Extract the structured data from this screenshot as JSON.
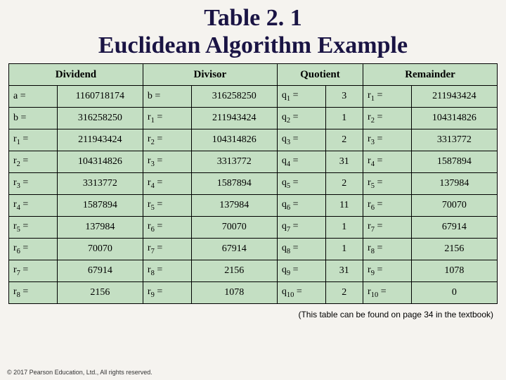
{
  "title_line1": "Table 2. 1",
  "title_line2": "Euclidean Algorithm Example",
  "caption": "(This table can be found on page 34 in the textbook)",
  "copyright": "© 2017 Pearson Education, Ltd., All rights reserved.",
  "table": {
    "type": "table",
    "background_color": "#c4dfc3",
    "border_color": "#000000",
    "font_family": "Times New Roman",
    "header_fontsize": 15,
    "cell_fontsize": 14,
    "columns": [
      "Dividend",
      "Divisor",
      "Quotient",
      "Remainder"
    ],
    "rows": [
      {
        "dividend_label": "a =",
        "dividend_value": "1160718174",
        "divisor_label": "b =",
        "divisor_value": "316258250",
        "quotient_label_base": "q",
        "quotient_label_sub": "1",
        "quotient_value": "3",
        "remainder_label_base": "r",
        "remainder_label_sub": "1",
        "remainder_value": "211943424"
      },
      {
        "dividend_label": "b =",
        "dividend_value": "316258250",
        "divisor_label_base": "r",
        "divisor_label_sub": "1",
        "divisor_value": "211943424",
        "quotient_label_base": "q",
        "quotient_label_sub": "2",
        "quotient_value": "1",
        "remainder_label_base": "r",
        "remainder_label_sub": "2",
        "remainder_value": "104314826"
      },
      {
        "dividend_label_base": "r",
        "dividend_label_sub": "1",
        "dividend_value": "211943424",
        "divisor_label_base": "r",
        "divisor_label_sub": "2",
        "divisor_value": "104314826",
        "quotient_label_base": "q",
        "quotient_label_sub": "3",
        "quotient_value": "2",
        "remainder_label_base": "r",
        "remainder_label_sub": "3",
        "remainder_value": "3313772"
      },
      {
        "dividend_label_base": "r",
        "dividend_label_sub": "2",
        "dividend_value": "104314826",
        "divisor_label_base": "r",
        "divisor_label_sub": "3",
        "divisor_value": "3313772",
        "quotient_label_base": "q",
        "quotient_label_sub": "4",
        "quotient_value": "31",
        "remainder_label_base": "r",
        "remainder_label_sub": "4",
        "remainder_value": "1587894"
      },
      {
        "dividend_label_base": "r",
        "dividend_label_sub": "3",
        "dividend_value": "3313772",
        "divisor_label_base": "r",
        "divisor_label_sub": "4",
        "divisor_value": "1587894",
        "quotient_label_base": "q",
        "quotient_label_sub": "5",
        "quotient_value": "2",
        "remainder_label_base": "r",
        "remainder_label_sub": "5",
        "remainder_value": "137984"
      },
      {
        "dividend_label_base": "r",
        "dividend_label_sub": "4",
        "dividend_value": "1587894",
        "divisor_label_base": "r",
        "divisor_label_sub": "5",
        "divisor_value": "137984",
        "quotient_label_base": "q",
        "quotient_label_sub": "6",
        "quotient_value": "11",
        "remainder_label_base": "r",
        "remainder_label_sub": "6",
        "remainder_value": "70070"
      },
      {
        "dividend_label_base": "r",
        "dividend_label_sub": "5",
        "dividend_value": "137984",
        "divisor_label_base": "r",
        "divisor_label_sub": "6",
        "divisor_value": "70070",
        "quotient_label_base": "q",
        "quotient_label_sub": "7",
        "quotient_value": "1",
        "remainder_label_base": "r",
        "remainder_label_sub": "7",
        "remainder_value": "67914"
      },
      {
        "dividend_label_base": "r",
        "dividend_label_sub": "6",
        "dividend_value": "70070",
        "divisor_label_base": "r",
        "divisor_label_sub": "7",
        "divisor_value": "67914",
        "quotient_label_base": "q",
        "quotient_label_sub": "8",
        "quotient_value": "1",
        "remainder_label_base": "r",
        "remainder_label_sub": "8",
        "remainder_value": "2156"
      },
      {
        "dividend_label_base": "r",
        "dividend_label_sub": "7",
        "dividend_value": "67914",
        "divisor_label_base": "r",
        "divisor_label_sub": "8",
        "divisor_value": "2156",
        "quotient_label_base": "q",
        "quotient_label_sub": "9",
        "quotient_value": "31",
        "remainder_label_base": "r",
        "remainder_label_sub": "9",
        "remainder_value": "1078"
      },
      {
        "dividend_label_base": "r",
        "dividend_label_sub": "8",
        "dividend_value": "2156",
        "divisor_label_base": "r",
        "divisor_label_sub": "9",
        "divisor_value": "1078",
        "quotient_label_base": "q",
        "quotient_label_sub": "10",
        "quotient_value": "2",
        "remainder_label_base": "r",
        "remainder_label_sub": "10",
        "remainder_value": "0"
      }
    ]
  }
}
